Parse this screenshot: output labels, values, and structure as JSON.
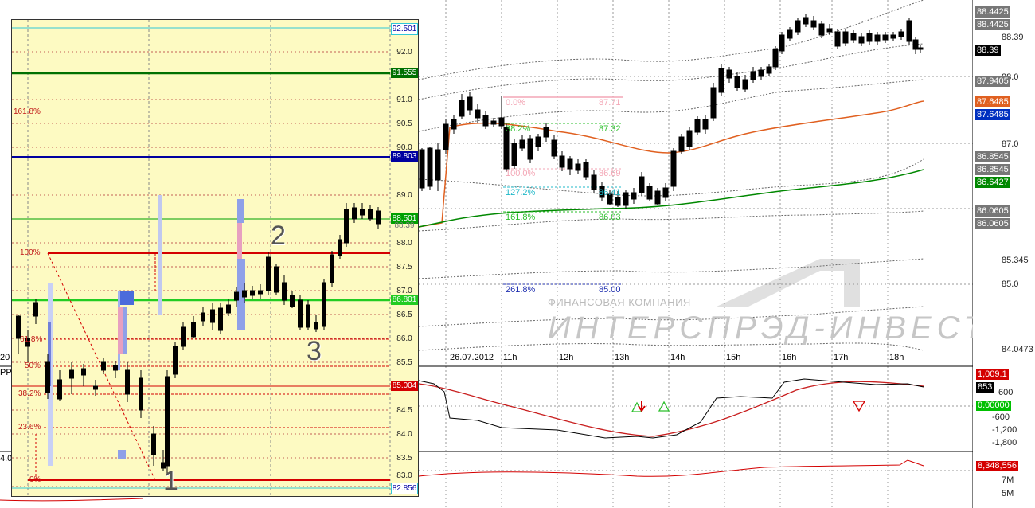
{
  "colors": {
    "overlay_bg": "#fdfac2",
    "up_candle": "#ffffff",
    "down_candle": "#000000",
    "green_level": "#00aa00",
    "red_level": "#d40000",
    "blue_level": "#0000a0",
    "orange_ma": "#e06020",
    "green_ma": "#008800",
    "price_tag": "#000000",
    "fib_pink": "#f3a6b5",
    "fib_green": "#2bbf2b",
    "fib_cyan": "#20b8c8",
    "fib_blue": "#2030b0"
  },
  "overlay": {
    "price_labels": [
      "92.501",
      "92.0",
      "91.555",
      "91.0",
      "90.5",
      "90.0",
      "89.803",
      "89.0",
      "88.501",
      "88.39",
      "88.0",
      "87.5",
      "87.0",
      "86.801",
      "86.5",
      "86.0",
      "85.5",
      "85.004",
      "84.5",
      "84.0",
      "83.5",
      "83.0",
      "82.856"
    ],
    "fib_labels": [
      "161.8%",
      "100%",
      "61.8%",
      "50%",
      "38.2%",
      "23.6%",
      "0%"
    ],
    "wave_labels": [
      "1",
      "2",
      "3"
    ]
  },
  "main": {
    "price_axis": [
      "88.4425",
      "88.4425",
      "88.39",
      "88.39",
      "88.0",
      "87.9405",
      "87.6485",
      "87.6485",
      "87.0",
      "86.8545",
      "86.8545",
      "86.6427",
      "86.0605",
      "86.0605",
      "85.345",
      "85.0",
      "84.0473"
    ],
    "time_axis": [
      "26.07.2012",
      "11h",
      "12h",
      "13h",
      "14h",
      "15h",
      "16h",
      "17h",
      "18h"
    ],
    "left_edge_label": "20",
    "fib_ext": [
      {
        "pct": "0.0%",
        "price": "87.71"
      },
      {
        "pct": "38.2%",
        "price": "87.32"
      },
      {
        "pct": "100.0%",
        "price": "86.69"
      },
      {
        "pct": "127.2%",
        "price": "86.41"
      },
      {
        "pct": "161.8%",
        "price": "86.03"
      },
      {
        "pct": "261.8%",
        "price": "85.00"
      }
    ],
    "watermark_line1": "ФИНАНСОВАЯ КОМПАНИЯ",
    "watermark_line2": "ИНТЕРСПРЭД-ИНВЕСТ"
  },
  "indicator1": {
    "label": "PP",
    "axis": [
      "1,009.1",
      "853",
      "600",
      "0.00000",
      "-600",
      "-1,200",
      "-1,800"
    ]
  },
  "indicator2": {
    "left_value": "4.0",
    "axis": [
      "8,348,556",
      "7M",
      "5M"
    ]
  }
}
